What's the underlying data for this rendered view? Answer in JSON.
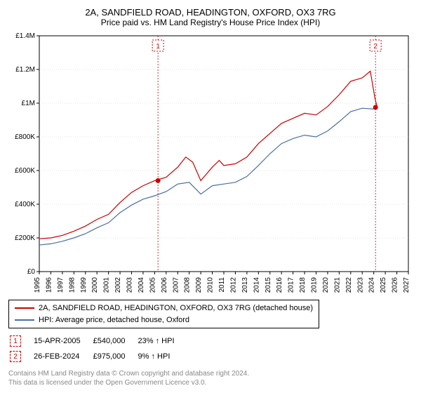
{
  "title": "2A, SANDFIELD ROAD, HEADINGTON, OXFORD, OX3 7RG",
  "subtitle": "Price paid vs. HM Land Registry's House Price Index (HPI)",
  "chart": {
    "type": "line",
    "background_color": "#ffffff",
    "grid_color": "#cccccc",
    "axis_color": "#000000",
    "x": {
      "min": 1995,
      "max": 2027,
      "ticks": [
        1995,
        1996,
        1997,
        1998,
        1999,
        2000,
        2001,
        2002,
        2003,
        2004,
        2005,
        2006,
        2007,
        2008,
        2009,
        2010,
        2011,
        2012,
        2013,
        2014,
        2015,
        2016,
        2017,
        2018,
        2019,
        2020,
        2021,
        2022,
        2023,
        2024,
        2025,
        2026,
        2027
      ]
    },
    "y": {
      "min": 0,
      "max": 1400000,
      "ticks": [
        0,
        200000,
        400000,
        600000,
        800000,
        1000000,
        1200000,
        1400000
      ],
      "tick_labels": [
        "£0",
        "£200K",
        "£400K",
        "£600K",
        "£800K",
        "£1M",
        "£1.2M",
        "£1.4M"
      ]
    },
    "series": [
      {
        "id": "property",
        "label": "2A, SANDFIELD ROAD, HEADINGTON, OXFORD, OX3 7RG (detached house)",
        "color": "#cc0000",
        "line_width": 1.2,
        "points": [
          [
            1995,
            195000
          ],
          [
            1996,
            200000
          ],
          [
            1997,
            215000
          ],
          [
            1998,
            240000
          ],
          [
            1999,
            270000
          ],
          [
            2000,
            310000
          ],
          [
            2001,
            340000
          ],
          [
            2002,
            410000
          ],
          [
            2003,
            470000
          ],
          [
            2004,
            510000
          ],
          [
            2005,
            540000
          ],
          [
            2006,
            560000
          ],
          [
            2007,
            620000
          ],
          [
            2007.7,
            680000
          ],
          [
            2008.3,
            650000
          ],
          [
            2009,
            540000
          ],
          [
            2010,
            620000
          ],
          [
            2010.6,
            660000
          ],
          [
            2011,
            630000
          ],
          [
            2012,
            640000
          ],
          [
            2013,
            680000
          ],
          [
            2014,
            760000
          ],
          [
            2015,
            820000
          ],
          [
            2016,
            880000
          ],
          [
            2017,
            910000
          ],
          [
            2018,
            940000
          ],
          [
            2019,
            930000
          ],
          [
            2020,
            980000
          ],
          [
            2021,
            1050000
          ],
          [
            2022,
            1130000
          ],
          [
            2023,
            1150000
          ],
          [
            2023.7,
            1190000
          ],
          [
            2024.1,
            1030000
          ],
          [
            2024.3,
            975000
          ]
        ]
      },
      {
        "id": "hpi",
        "label": "HPI: Average price, detached house, Oxford",
        "color": "#4a6fa5",
        "line_width": 1.2,
        "points": [
          [
            1995,
            158000
          ],
          [
            1996,
            165000
          ],
          [
            1997,
            180000
          ],
          [
            1998,
            200000
          ],
          [
            1999,
            225000
          ],
          [
            2000,
            260000
          ],
          [
            2001,
            290000
          ],
          [
            2002,
            350000
          ],
          [
            2003,
            395000
          ],
          [
            2004,
            430000
          ],
          [
            2005,
            450000
          ],
          [
            2006,
            475000
          ],
          [
            2007,
            520000
          ],
          [
            2008,
            530000
          ],
          [
            2009,
            460000
          ],
          [
            2010,
            510000
          ],
          [
            2011,
            520000
          ],
          [
            2012,
            530000
          ],
          [
            2013,
            565000
          ],
          [
            2014,
            630000
          ],
          [
            2015,
            700000
          ],
          [
            2016,
            760000
          ],
          [
            2017,
            790000
          ],
          [
            2018,
            810000
          ],
          [
            2019,
            800000
          ],
          [
            2020,
            835000
          ],
          [
            2021,
            890000
          ],
          [
            2022,
            950000
          ],
          [
            2023,
            970000
          ],
          [
            2024,
            965000
          ]
        ]
      }
    ],
    "sale_markers": [
      {
        "n": 1,
        "x": 2005.29,
        "y": 540000,
        "color": "#cc0000"
      },
      {
        "n": 2,
        "x": 2024.15,
        "y": 975000,
        "color": "#cc0000"
      }
    ]
  },
  "sales": [
    {
      "n": 1,
      "date": "15-APR-2005",
      "price": "£540,000",
      "delta": "23% ↑ HPI",
      "color": "#cc0000"
    },
    {
      "n": 2,
      "date": "26-FEB-2024",
      "price": "£975,000",
      "delta": "9% ↑ HPI",
      "color": "#cc0000"
    }
  ],
  "license": {
    "l1": "Contains HM Land Registry data © Crown copyright and database right 2024.",
    "l2": "This data is licensed under the Open Government Licence v3.0."
  }
}
